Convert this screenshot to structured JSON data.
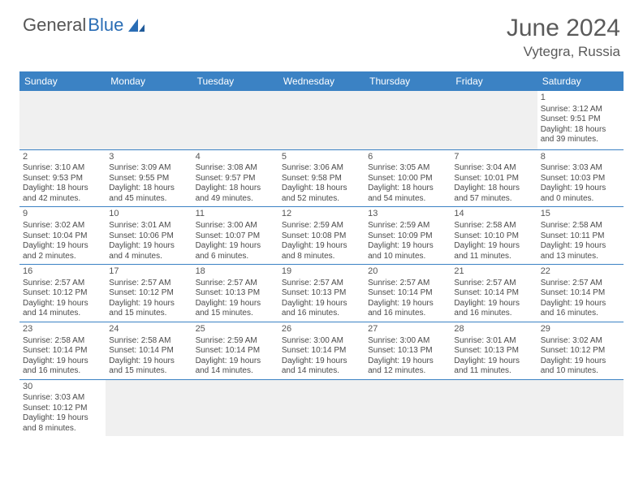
{
  "logo": {
    "word1": "General",
    "word2": "Blue"
  },
  "title": {
    "month": "June 2024",
    "location": "Vytegra, Russia"
  },
  "headers": [
    "Sunday",
    "Monday",
    "Tuesday",
    "Wednesday",
    "Thursday",
    "Friday",
    "Saturday"
  ],
  "colors": {
    "header_bg": "#3b82c4",
    "header_text": "#ffffff",
    "blank_bg": "#f0f0f0"
  },
  "weeks": [
    [
      null,
      null,
      null,
      null,
      null,
      null,
      {
        "n": "1",
        "sr": "Sunrise: 3:12 AM",
        "ss": "Sunset: 9:51 PM",
        "dl1": "Daylight: 18 hours",
        "dl2": "and 39 minutes."
      }
    ],
    [
      {
        "n": "2",
        "sr": "Sunrise: 3:10 AM",
        "ss": "Sunset: 9:53 PM",
        "dl1": "Daylight: 18 hours",
        "dl2": "and 42 minutes."
      },
      {
        "n": "3",
        "sr": "Sunrise: 3:09 AM",
        "ss": "Sunset: 9:55 PM",
        "dl1": "Daylight: 18 hours",
        "dl2": "and 45 minutes."
      },
      {
        "n": "4",
        "sr": "Sunrise: 3:08 AM",
        "ss": "Sunset: 9:57 PM",
        "dl1": "Daylight: 18 hours",
        "dl2": "and 49 minutes."
      },
      {
        "n": "5",
        "sr": "Sunrise: 3:06 AM",
        "ss": "Sunset: 9:58 PM",
        "dl1": "Daylight: 18 hours",
        "dl2": "and 52 minutes."
      },
      {
        "n": "6",
        "sr": "Sunrise: 3:05 AM",
        "ss": "Sunset: 10:00 PM",
        "dl1": "Daylight: 18 hours",
        "dl2": "and 54 minutes."
      },
      {
        "n": "7",
        "sr": "Sunrise: 3:04 AM",
        "ss": "Sunset: 10:01 PM",
        "dl1": "Daylight: 18 hours",
        "dl2": "and 57 minutes."
      },
      {
        "n": "8",
        "sr": "Sunrise: 3:03 AM",
        "ss": "Sunset: 10:03 PM",
        "dl1": "Daylight: 19 hours",
        "dl2": "and 0 minutes."
      }
    ],
    [
      {
        "n": "9",
        "sr": "Sunrise: 3:02 AM",
        "ss": "Sunset: 10:04 PM",
        "dl1": "Daylight: 19 hours",
        "dl2": "and 2 minutes."
      },
      {
        "n": "10",
        "sr": "Sunrise: 3:01 AM",
        "ss": "Sunset: 10:06 PM",
        "dl1": "Daylight: 19 hours",
        "dl2": "and 4 minutes."
      },
      {
        "n": "11",
        "sr": "Sunrise: 3:00 AM",
        "ss": "Sunset: 10:07 PM",
        "dl1": "Daylight: 19 hours",
        "dl2": "and 6 minutes."
      },
      {
        "n": "12",
        "sr": "Sunrise: 2:59 AM",
        "ss": "Sunset: 10:08 PM",
        "dl1": "Daylight: 19 hours",
        "dl2": "and 8 minutes."
      },
      {
        "n": "13",
        "sr": "Sunrise: 2:59 AM",
        "ss": "Sunset: 10:09 PM",
        "dl1": "Daylight: 19 hours",
        "dl2": "and 10 minutes."
      },
      {
        "n": "14",
        "sr": "Sunrise: 2:58 AM",
        "ss": "Sunset: 10:10 PM",
        "dl1": "Daylight: 19 hours",
        "dl2": "and 11 minutes."
      },
      {
        "n": "15",
        "sr": "Sunrise: 2:58 AM",
        "ss": "Sunset: 10:11 PM",
        "dl1": "Daylight: 19 hours",
        "dl2": "and 13 minutes."
      }
    ],
    [
      {
        "n": "16",
        "sr": "Sunrise: 2:57 AM",
        "ss": "Sunset: 10:12 PM",
        "dl1": "Daylight: 19 hours",
        "dl2": "and 14 minutes."
      },
      {
        "n": "17",
        "sr": "Sunrise: 2:57 AM",
        "ss": "Sunset: 10:12 PM",
        "dl1": "Daylight: 19 hours",
        "dl2": "and 15 minutes."
      },
      {
        "n": "18",
        "sr": "Sunrise: 2:57 AM",
        "ss": "Sunset: 10:13 PM",
        "dl1": "Daylight: 19 hours",
        "dl2": "and 15 minutes."
      },
      {
        "n": "19",
        "sr": "Sunrise: 2:57 AM",
        "ss": "Sunset: 10:13 PM",
        "dl1": "Daylight: 19 hours",
        "dl2": "and 16 minutes."
      },
      {
        "n": "20",
        "sr": "Sunrise: 2:57 AM",
        "ss": "Sunset: 10:14 PM",
        "dl1": "Daylight: 19 hours",
        "dl2": "and 16 minutes."
      },
      {
        "n": "21",
        "sr": "Sunrise: 2:57 AM",
        "ss": "Sunset: 10:14 PM",
        "dl1": "Daylight: 19 hours",
        "dl2": "and 16 minutes."
      },
      {
        "n": "22",
        "sr": "Sunrise: 2:57 AM",
        "ss": "Sunset: 10:14 PM",
        "dl1": "Daylight: 19 hours",
        "dl2": "and 16 minutes."
      }
    ],
    [
      {
        "n": "23",
        "sr": "Sunrise: 2:58 AM",
        "ss": "Sunset: 10:14 PM",
        "dl1": "Daylight: 19 hours",
        "dl2": "and 16 minutes."
      },
      {
        "n": "24",
        "sr": "Sunrise: 2:58 AM",
        "ss": "Sunset: 10:14 PM",
        "dl1": "Daylight: 19 hours",
        "dl2": "and 15 minutes."
      },
      {
        "n": "25",
        "sr": "Sunrise: 2:59 AM",
        "ss": "Sunset: 10:14 PM",
        "dl1": "Daylight: 19 hours",
        "dl2": "and 14 minutes."
      },
      {
        "n": "26",
        "sr": "Sunrise: 3:00 AM",
        "ss": "Sunset: 10:14 PM",
        "dl1": "Daylight: 19 hours",
        "dl2": "and 14 minutes."
      },
      {
        "n": "27",
        "sr": "Sunrise: 3:00 AM",
        "ss": "Sunset: 10:13 PM",
        "dl1": "Daylight: 19 hours",
        "dl2": "and 12 minutes."
      },
      {
        "n": "28",
        "sr": "Sunrise: 3:01 AM",
        "ss": "Sunset: 10:13 PM",
        "dl1": "Daylight: 19 hours",
        "dl2": "and 11 minutes."
      },
      {
        "n": "29",
        "sr": "Sunrise: 3:02 AM",
        "ss": "Sunset: 10:12 PM",
        "dl1": "Daylight: 19 hours",
        "dl2": "and 10 minutes."
      }
    ],
    [
      {
        "n": "30",
        "sr": "Sunrise: 3:03 AM",
        "ss": "Sunset: 10:12 PM",
        "dl1": "Daylight: 19 hours",
        "dl2": "and 8 minutes."
      },
      null,
      null,
      null,
      null,
      null,
      null
    ]
  ]
}
